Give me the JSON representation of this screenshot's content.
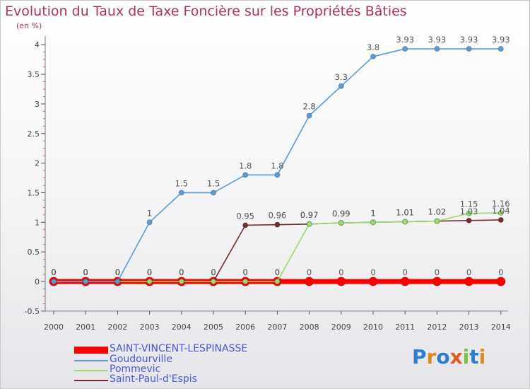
{
  "title": "Evolution du Taux de Taxe Foncière sur les Propriétés Bâties",
  "subtitle": "(en %)",
  "logo": "Proxiti",
  "chart_data": {
    "type": "line",
    "x": [
      2000,
      2001,
      2002,
      2003,
      2004,
      2005,
      2006,
      2007,
      2008,
      2009,
      2010,
      2011,
      2012,
      2013,
      2014
    ],
    "ylim": [
      -0.5,
      4
    ],
    "yticks": [
      "-0.5",
      "0",
      "0.5",
      "1",
      "1.5",
      "2",
      "2.5",
      "3",
      "3.5",
      "4"
    ],
    "grid": false,
    "legend_position": "bottom-left",
    "series": [
      {
        "name": "SAINT-VINCENT-LESPINASSE",
        "color": "#ff0000",
        "values": [
          0,
          0,
          0,
          0,
          0,
          0,
          0,
          0,
          0,
          0,
          0,
          0,
          0,
          0,
          0
        ],
        "labels": [
          "0",
          "0",
          "0",
          "0",
          "0",
          "0",
          "0",
          "0",
          "0",
          "0",
          "0",
          "0",
          "0",
          "0",
          "0"
        ]
      },
      {
        "name": "Goudourville",
        "color": "#5b9bd5",
        "values": [
          0,
          0,
          0,
          1,
          1.5,
          1.5,
          1.8,
          1.8,
          2.8,
          3.3,
          3.8,
          3.93,
          3.93,
          3.93,
          3.93
        ],
        "labels": [
          "0",
          "0",
          "0",
          "1",
          "1.5",
          "1.5",
          "1.8",
          "1.8",
          "2.8",
          "3.3",
          "3.8",
          "3.93",
          "3.93",
          "3.93",
          "3.93"
        ]
      },
      {
        "name": "Pommevic",
        "color": "#99dd66",
        "values": [
          0,
          0,
          0,
          0,
          0,
          0,
          0,
          0,
          0.97,
          0.99,
          1,
          1.01,
          1.02,
          1.15,
          1.16
        ],
        "labels": [
          "0",
          "0",
          "0",
          "0",
          "0",
          "0",
          "0",
          "0",
          "0.97",
          "0.99",
          "1",
          "1.01",
          "1.02",
          "1.15",
          "1.16"
        ]
      },
      {
        "name": "Saint-Paul-d'Espis",
        "color": "#7a2a2a",
        "values": [
          0,
          0,
          0,
          0,
          0,
          0,
          0.95,
          0.96,
          0.97,
          0.99,
          1,
          1.01,
          1.02,
          1.03,
          1.04
        ],
        "labels": [
          "0",
          "0",
          "0",
          "0",
          "0",
          "0",
          "0.95",
          "0.96",
          "0.97",
          "0.99",
          "1",
          "1.01",
          "1.02",
          "1.03",
          "1.04"
        ]
      }
    ]
  }
}
